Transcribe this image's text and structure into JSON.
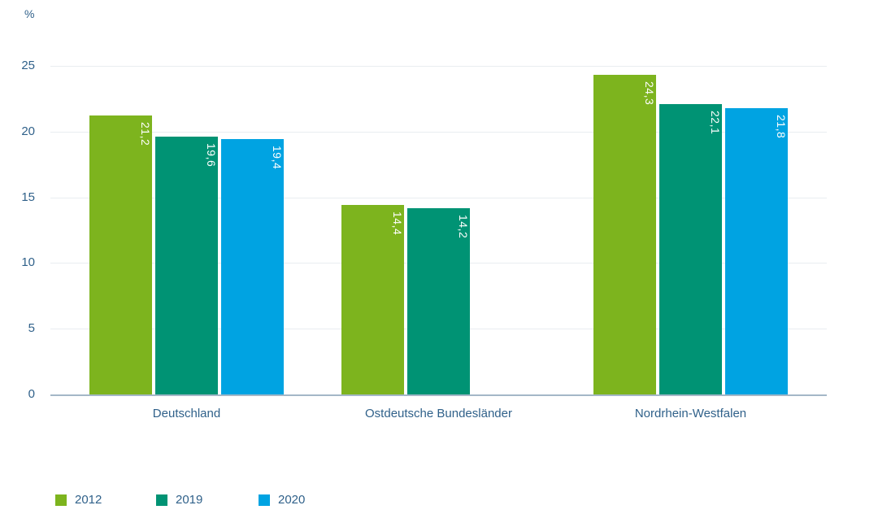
{
  "chart_data": {
    "type": "bar",
    "title": "",
    "unit_label": "%",
    "categories": [
      "Deutschland",
      "Ostdeutsche Bundesländer",
      "Nordrhein-Westfalen"
    ],
    "series": [
      {
        "name": "2012",
        "color": "#7db41e",
        "values": [
          21.2,
          14.4,
          24.3
        ],
        "labels": [
          "21,2",
          "14,4",
          "24,3"
        ]
      },
      {
        "name": "2019",
        "color": "#009374",
        "values": [
          19.6,
          14.2,
          22.1
        ],
        "labels": [
          "19,6",
          "14,2",
          "22,1"
        ]
      },
      {
        "name": "2020",
        "color": "#00a3e2",
        "values": [
          19.4,
          null,
          21.8
        ],
        "labels": [
          "19,4",
          null,
          "21,8"
        ]
      }
    ],
    "ylabel": "%",
    "ylim": [
      0,
      25
    ],
    "yticks": [
      0,
      5,
      10,
      15,
      20,
      25
    ],
    "grid": true,
    "legend": [
      "2012",
      "2019",
      "2020"
    ],
    "legend_position": "bottom-left",
    "value_label_color": "#ffffff",
    "axis_text_color": "#30618a",
    "gridline_color": "#e9edf0",
    "baseline_color": "#a4b7c7"
  }
}
